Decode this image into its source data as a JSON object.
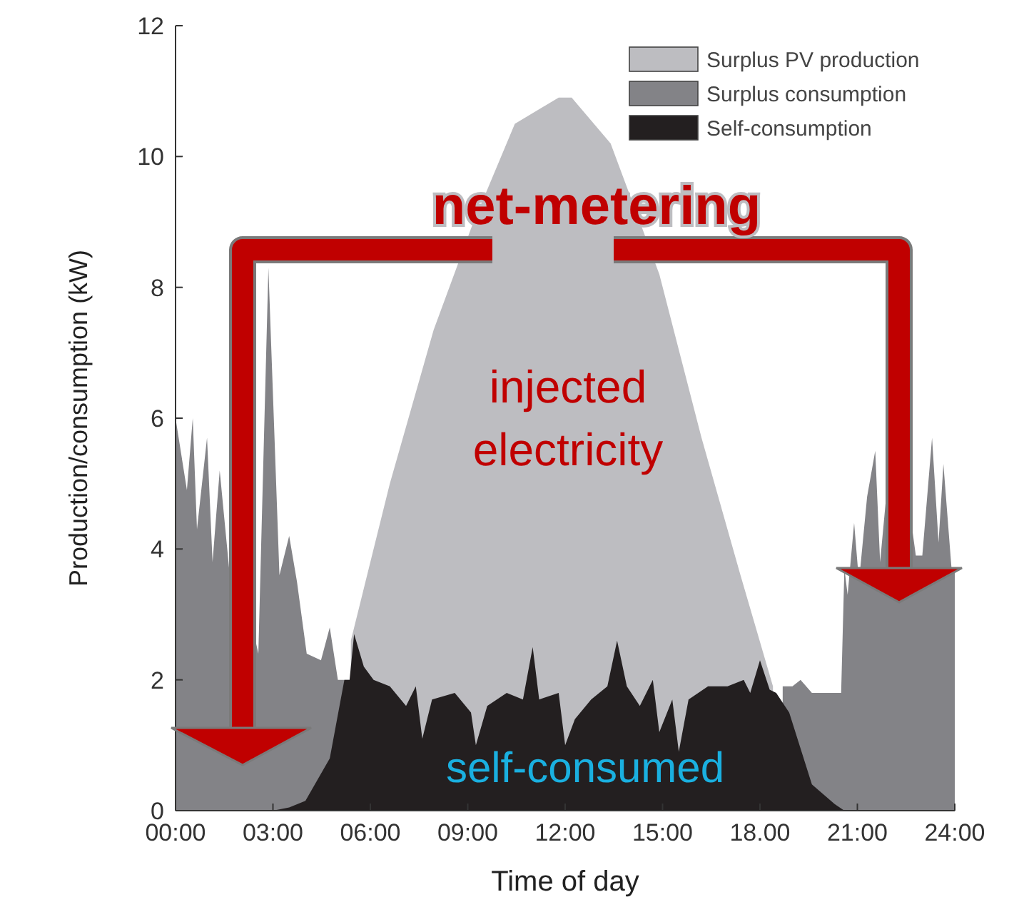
{
  "chart_data": {
    "type": "area",
    "xlabel": "Time of day",
    "ylabel": "Production/consumption (kW)",
    "xlim": [
      0,
      24
    ],
    "xticks": [
      {
        "value": 0,
        "label": "00:00"
      },
      {
        "value": 3,
        "label": "03:00"
      },
      {
        "value": 6,
        "label": "06:00"
      },
      {
        "value": 9,
        "label": "09:00"
      },
      {
        "value": 12,
        "label": "12:00"
      },
      {
        "value": 15,
        "label": "15:00"
      },
      {
        "value": 18,
        "label": "18.00"
      },
      {
        "value": 21,
        "label": "21:00"
      },
      {
        "value": 24,
        "label": "24:00"
      }
    ],
    "ylim": [
      0,
      12
    ],
    "yticks": [
      0,
      2,
      4,
      6,
      8,
      10,
      12
    ],
    "grid": false,
    "legend": "top right",
    "series": [
      {
        "name": "Surplus PV production",
        "color": "#bdbdc1",
        "x": [
          5.4,
          6.6,
          7.95,
          9.1,
          10.45,
          11.8,
          12.2,
          13.4,
          14.9,
          16.2,
          17.4,
          18.4
        ],
        "values": [
          2.6,
          5.0,
          7.35,
          8.9,
          10.5,
          10.9,
          10.9,
          10.2,
          8.2,
          5.7,
          3.6,
          1.9
        ]
      },
      {
        "name": "Surplus consumption",
        "color": "#838387",
        "x": [
          0,
          0.35,
          0.53,
          0.66,
          0.97,
          1.14,
          1.36,
          1.67,
          1.85,
          2.2,
          2.55,
          2.86,
          3.2,
          3.5,
          3.74,
          4.04,
          4.48,
          4.75,
          5.0,
          5.36,
          12,
          18.7,
          19.0,
          19.25,
          19.6,
          20.1,
          20.5,
          20.6,
          20.7,
          20.9,
          21.05,
          21.3,
          21.55,
          21.7,
          22.0,
          22.2,
          22.5,
          22.8,
          23.0,
          23.3,
          23.5,
          23.65,
          23.9,
          24
        ],
        "values": [
          6.0,
          4.9,
          6.0,
          4.3,
          5.7,
          3.8,
          5.2,
          3.6,
          4.1,
          3.2,
          2.4,
          8.3,
          3.6,
          4.2,
          3.5,
          2.4,
          2.3,
          2.8,
          2.0,
          2.0,
          null,
          1.9,
          1.9,
          2.0,
          1.8,
          1.8,
          1.8,
          3.7,
          3.3,
          4.4,
          3.5,
          4.8,
          5.5,
          3.8,
          5.4,
          4.0,
          5.0,
          3.9,
          3.9,
          5.7,
          4.1,
          5.3,
          3.7,
          3.7
        ]
      },
      {
        "name": "Self-consumption",
        "color": "#231f20",
        "x": [
          0,
          3.0,
          3.5,
          4.0,
          4.75,
          5.2,
          5.36,
          5.5,
          5.8,
          6.1,
          6.6,
          7.1,
          7.4,
          7.6,
          7.9,
          8.6,
          9.1,
          9.25,
          9.6,
          10.2,
          10.7,
          11.0,
          11.2,
          11.8,
          12.0,
          12.3,
          12.8,
          13.3,
          13.6,
          13.9,
          14.3,
          14.7,
          14.9,
          15.3,
          15.5,
          15.8,
          16.4,
          17.0,
          17.5,
          17.7,
          18.0,
          18.3,
          18.5,
          18.9,
          19.6,
          20.3,
          20.6,
          24
        ],
        "values": [
          0,
          0,
          0.05,
          0.15,
          0.8,
          2.0,
          2.0,
          2.7,
          2.2,
          2.0,
          1.9,
          1.6,
          1.9,
          1.1,
          1.7,
          1.8,
          1.5,
          1.0,
          1.6,
          1.8,
          1.7,
          2.5,
          1.7,
          1.8,
          1.0,
          1.4,
          1.7,
          1.9,
          2.6,
          1.9,
          1.6,
          2.0,
          1.2,
          1.7,
          0.9,
          1.7,
          1.9,
          1.9,
          2.0,
          1.8,
          2.3,
          1.85,
          1.8,
          1.5,
          0.4,
          0.1,
          0,
          0
        ]
      }
    ],
    "annotations": [
      "net-metering",
      "injected electricity",
      "self-consumed"
    ]
  }
}
